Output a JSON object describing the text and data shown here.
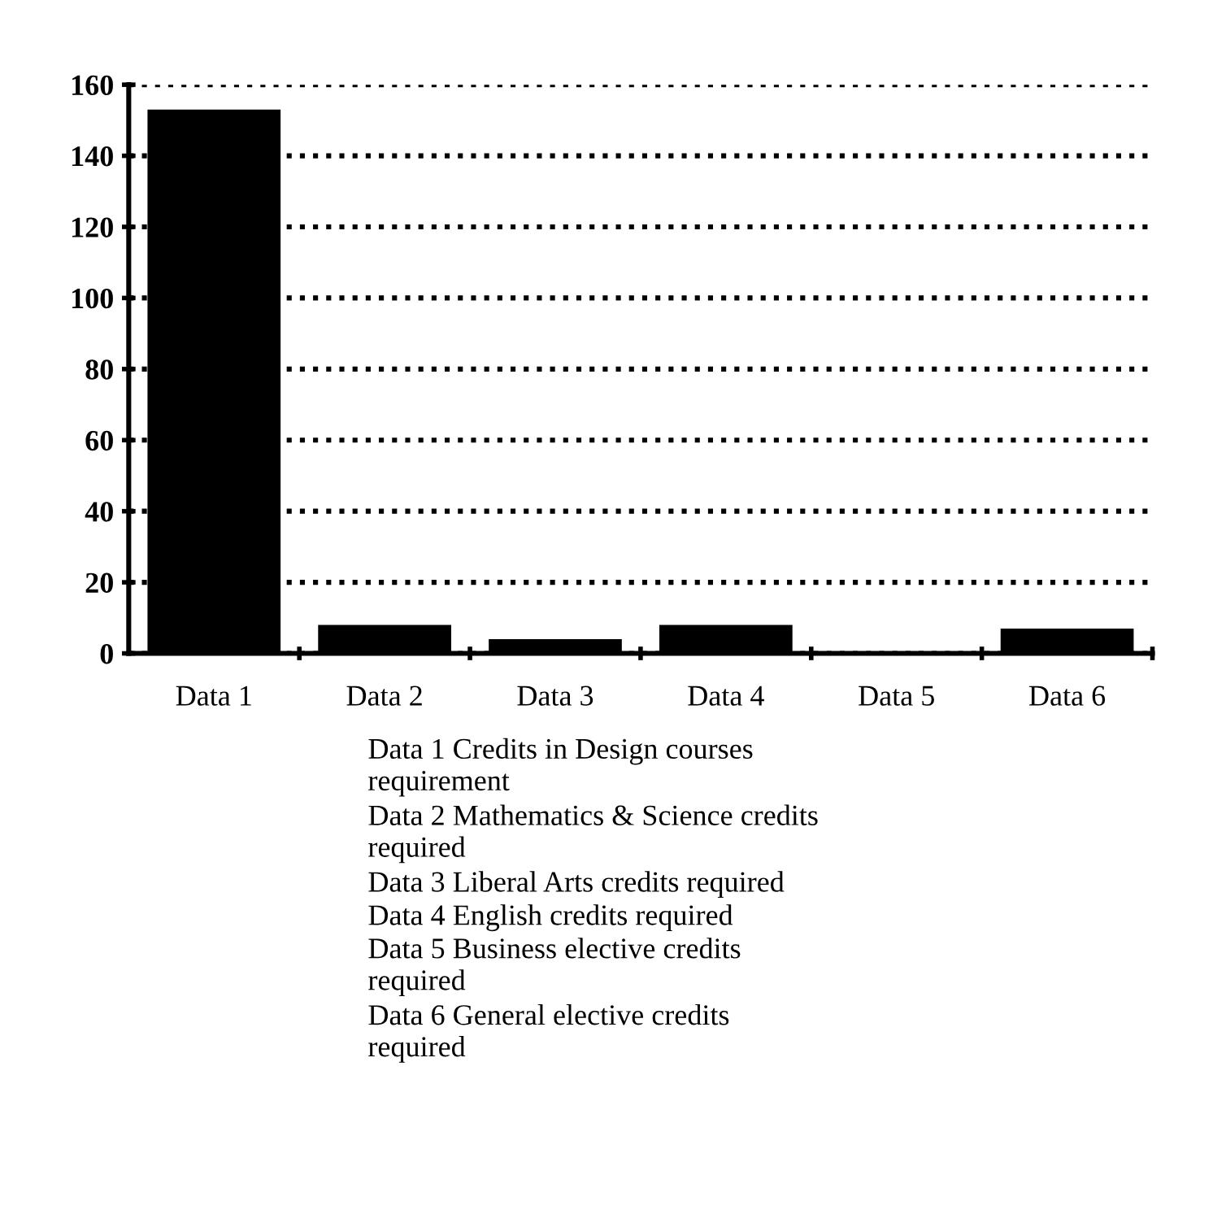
{
  "chart_data": {
    "type": "bar",
    "categories": [
      "Data 1",
      "Data 2",
      "Data 3",
      "Data 4",
      "Data 5",
      "Data 6"
    ],
    "values": [
      153,
      8,
      4,
      8,
      0,
      7
    ],
    "color": "#000000",
    "ylim": [
      0,
      160
    ],
    "yticks": [
      0,
      20,
      40,
      60,
      80,
      100,
      120,
      140,
      160
    ],
    "grid": "y",
    "annotations": [
      "Data 1 Credits in Design courses\nrequirement",
      "Data 2 Mathematics & Science credits\nrequired",
      "Data 3 Liberal Arts credits required",
      "Data 4 English credits required",
      "Data 5 Business elective credits\nrequired",
      "Data 6 General elective credits\nrequired"
    ]
  }
}
